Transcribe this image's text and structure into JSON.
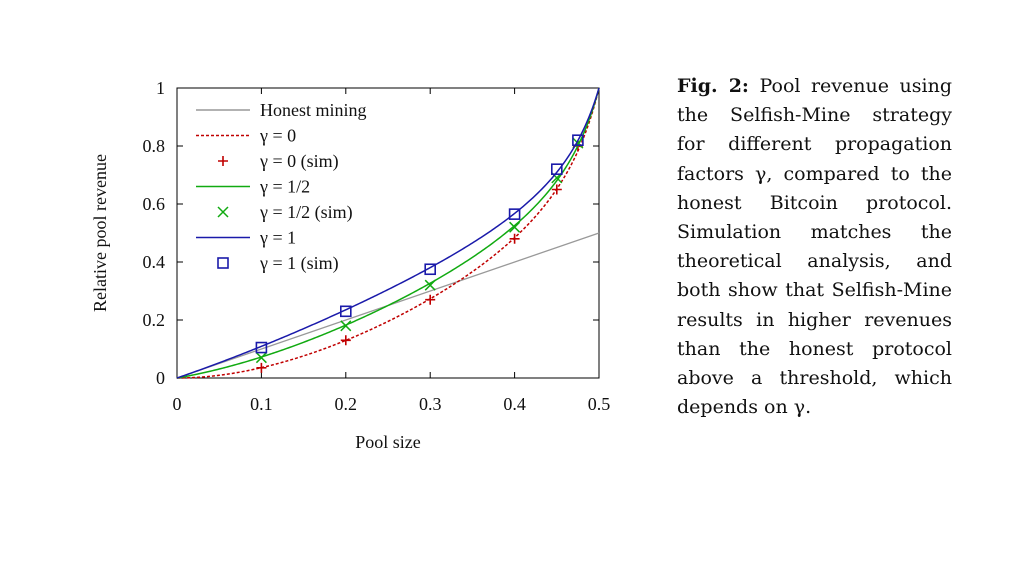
{
  "caption": {
    "label": "Fig. 2:",
    "text": "Pool revenue using the Selfish-Mine strategy for different propagation factors γ, compared to the honest Bitcoin protocol. Simulation matches the theoretical analysis, and both show that Selfish-Mine results in higher revenues than the honest protocol above a threshold, which depends on γ."
  },
  "chart_data": {
    "type": "line",
    "xlabel": "Pool size",
    "ylabel": "Relative pool revenue",
    "xlim": [
      0,
      0.5
    ],
    "ylim": [
      0,
      1
    ],
    "xticks": [
      0,
      0.1,
      0.2,
      0.3,
      0.4,
      0.5
    ],
    "xtick_labels": [
      "0",
      "0.1",
      "0.2",
      "0.3",
      "0.4",
      "0.5"
    ],
    "yticks": [
      0,
      0.2,
      0.4,
      0.6,
      0.8,
      1
    ],
    "ytick_labels": [
      "0",
      "0.2",
      "0.4",
      "0.6",
      "0.8",
      "1"
    ],
    "grid": false,
    "legend_position": "top-left",
    "series": [
      {
        "name": "Honest mining",
        "kind": "line",
        "style": "solid",
        "color": "#999999",
        "x": [
          0,
          0.5
        ],
        "y": [
          0,
          0.5
        ]
      },
      {
        "name": "γ = 0",
        "kind": "line",
        "style": "dashed",
        "color": "#c00000",
        "gamma": 0
      },
      {
        "name": "γ = 0 (sim)",
        "kind": "marker",
        "marker": "plus",
        "color": "#c00000",
        "x": [
          0.1,
          0.2,
          0.3,
          0.4,
          0.45,
          0.475
        ],
        "y": [
          0.035,
          0.13,
          0.27,
          0.48,
          0.65,
          0.8
        ]
      },
      {
        "name": "γ = 1/2",
        "kind": "line",
        "style": "solid",
        "color": "#11aa11",
        "gamma": 0.5
      },
      {
        "name": "γ = 1/2 (sim)",
        "kind": "marker",
        "marker": "cross",
        "color": "#11aa11",
        "x": [
          0.1,
          0.2,
          0.3,
          0.4,
          0.45,
          0.475
        ],
        "y": [
          0.07,
          0.18,
          0.32,
          0.52,
          0.69,
          0.81
        ]
      },
      {
        "name": "γ = 1",
        "kind": "line",
        "style": "solid",
        "color": "#1a1aaa",
        "gamma": 1
      },
      {
        "name": "γ = 1 (sim)",
        "kind": "marker",
        "marker": "square",
        "color": "#1a1aaa",
        "x": [
          0.1,
          0.2,
          0.3,
          0.4,
          0.45,
          0.475
        ],
        "y": [
          0.105,
          0.23,
          0.375,
          0.565,
          0.72,
          0.82
        ]
      }
    ]
  }
}
